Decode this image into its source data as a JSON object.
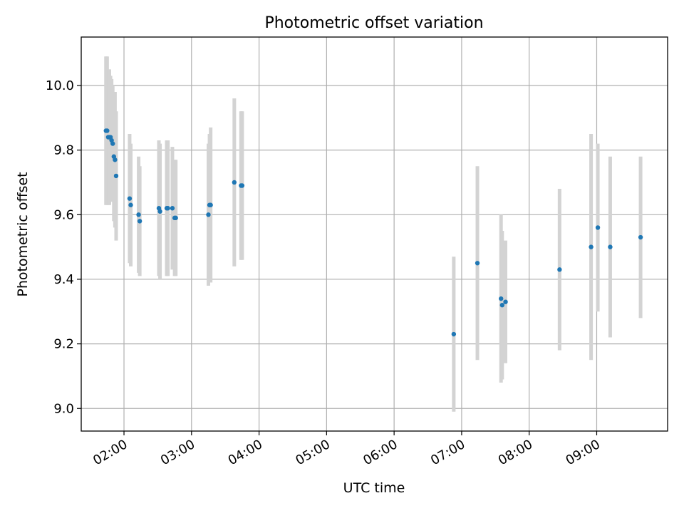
{
  "chart_data": {
    "type": "scatter",
    "title": "Photometric offset variation",
    "xlabel": "UTC time",
    "ylabel": "Photometric offset",
    "x_ticks": [
      "02:00",
      "03:00",
      "04:00",
      "05:00",
      "06:00",
      "07:00",
      "08:00",
      "09:00"
    ],
    "y_ticks": [
      "9.0",
      "9.2",
      "9.4",
      "9.6",
      "9.8",
      "10.0"
    ],
    "xlim": [
      "01:22",
      "10:03"
    ],
    "ylim": [
      8.93,
      10.15
    ],
    "grid": true,
    "colors": {
      "point": "#1f77b4",
      "errorbar": "#d3d3d3"
    },
    "series": [
      {
        "points": [
          {
            "t": "01:44",
            "y": 9.86,
            "err": 0.23
          },
          {
            "t": "01:45",
            "y": 9.86,
            "err": 0.23
          },
          {
            "t": "01:46",
            "y": 9.84,
            "err": 0.21
          },
          {
            "t": "01:47",
            "y": 9.84,
            "err": 0.21
          },
          {
            "t": "01:48",
            "y": 9.84,
            "err": 0.19
          },
          {
            "t": "01:49",
            "y": 9.83,
            "err": 0.19
          },
          {
            "t": "01:50",
            "y": 9.82,
            "err": 0.18
          },
          {
            "t": "01:51",
            "y": 9.78,
            "err": 0.2
          },
          {
            "t": "01:52",
            "y": 9.77,
            "err": 0.21
          },
          {
            "t": "01:53",
            "y": 9.72,
            "err": 0.2
          },
          {
            "t": "02:05",
            "y": 9.65,
            "err": 0.2
          },
          {
            "t": "02:06",
            "y": 9.63,
            "err": 0.19
          },
          {
            "t": "02:13",
            "y": 9.6,
            "err": 0.18
          },
          {
            "t": "02:14",
            "y": 9.58,
            "err": 0.17
          },
          {
            "t": "02:31",
            "y": 9.62,
            "err": 0.21
          },
          {
            "t": "02:32",
            "y": 9.61,
            "err": 0.21
          },
          {
            "t": "02:38",
            "y": 9.62,
            "err": 0.21
          },
          {
            "t": "02:39",
            "y": 9.62,
            "err": 0.21
          },
          {
            "t": "02:43",
            "y": 9.62,
            "err": 0.19
          },
          {
            "t": "02:45",
            "y": 9.59,
            "err": 0.18
          },
          {
            "t": "02:46",
            "y": 9.59,
            "err": 0.18
          },
          {
            "t": "03:15",
            "y": 9.6,
            "err": 0.22
          },
          {
            "t": "03:16",
            "y": 9.63,
            "err": 0.22
          },
          {
            "t": "03:17",
            "y": 9.63,
            "err": 0.24
          },
          {
            "t": "03:38",
            "y": 9.7,
            "err": 0.26
          },
          {
            "t": "03:44",
            "y": 9.69,
            "err": 0.23
          },
          {
            "t": "03:45",
            "y": 9.69,
            "err": 0.23
          },
          {
            "t": "06:53",
            "y": 9.23,
            "err": 0.24
          },
          {
            "t": "07:14",
            "y": 9.45,
            "err": 0.3
          },
          {
            "t": "07:35",
            "y": 9.34,
            "err": 0.26
          },
          {
            "t": "07:36",
            "y": 9.32,
            "err": 0.23
          },
          {
            "t": "07:39",
            "y": 9.33,
            "err": 0.19
          },
          {
            "t": "08:27",
            "y": 9.43,
            "err": 0.25
          },
          {
            "t": "08:55",
            "y": 9.5,
            "err": 0.35
          },
          {
            "t": "09:01",
            "y": 9.56,
            "err": 0.26
          },
          {
            "t": "09:12",
            "y": 9.5,
            "err": 0.28
          },
          {
            "t": "09:39",
            "y": 9.53,
            "err": 0.25
          }
        ]
      }
    ]
  }
}
